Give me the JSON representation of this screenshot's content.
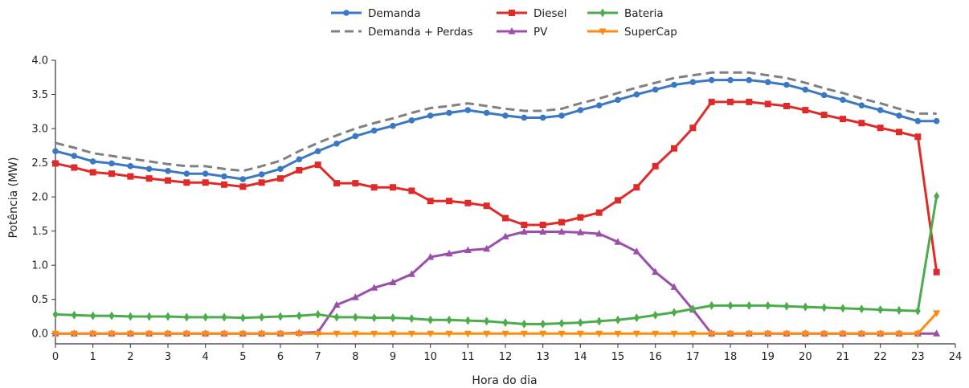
{
  "chart_data": {
    "type": "line",
    "title": "",
    "xlabel": "Hora do dia",
    "ylabel": "Potência (MW)",
    "xlim": [
      0,
      24
    ],
    "ylim": [
      -0.15,
      4.0
    ],
    "xticks": [
      0,
      1,
      2,
      3,
      4,
      5,
      6,
      7,
      8,
      9,
      10,
      11,
      12,
      13,
      14,
      15,
      16,
      17,
      18,
      19,
      20,
      21,
      22,
      23,
      24
    ],
    "yticks": [
      0.0,
      0.5,
      1.0,
      1.5,
      2.0,
      2.5,
      3.0,
      3.5,
      4.0
    ],
    "grid": false,
    "legend_position": "top-center",
    "x": [
      0,
      0.5,
      1,
      1.5,
      2,
      2.5,
      3,
      3.5,
      4,
      4.5,
      5,
      5.5,
      6,
      6.5,
      7,
      7.5,
      8,
      8.5,
      9,
      9.5,
      10,
      10.5,
      11,
      11.5,
      12,
      12.5,
      13,
      13.5,
      14,
      14.5,
      15,
      15.5,
      16,
      16.5,
      17,
      17.5,
      18,
      18.5,
      19,
      19.5,
      20,
      20.5,
      21,
      21.5,
      22,
      22.5,
      23,
      23.5
    ],
    "series": [
      {
        "name": "Demanda",
        "color": "#3b78c3",
        "marker": "circle",
        "dash": false,
        "values": [
          2.67,
          2.6,
          2.52,
          2.49,
          2.45,
          2.41,
          2.38,
          2.34,
          2.34,
          2.3,
          2.26,
          2.33,
          2.41,
          2.55,
          2.67,
          2.78,
          2.89,
          2.97,
          3.04,
          3.12,
          3.19,
          3.23,
          3.27,
          3.23,
          3.19,
          3.16,
          3.16,
          3.19,
          3.27,
          3.34,
          3.42,
          3.5,
          3.57,
          3.64,
          3.68,
          3.71,
          3.71,
          3.71,
          3.68,
          3.64,
          3.57,
          3.49,
          3.42,
          3.34,
          3.27,
          3.19,
          3.11,
          3.11
        ]
      },
      {
        "name": "Demanda + Perdas",
        "color": "#808080",
        "marker": "none",
        "dash": true,
        "values": [
          2.79,
          2.72,
          2.64,
          2.6,
          2.56,
          2.52,
          2.48,
          2.45,
          2.45,
          2.41,
          2.38,
          2.45,
          2.53,
          2.67,
          2.79,
          2.9,
          3.0,
          3.08,
          3.15,
          3.23,
          3.3,
          3.33,
          3.37,
          3.33,
          3.29,
          3.26,
          3.26,
          3.29,
          3.37,
          3.44,
          3.52,
          3.6,
          3.67,
          3.74,
          3.78,
          3.82,
          3.82,
          3.82,
          3.78,
          3.74,
          3.67,
          3.59,
          3.52,
          3.44,
          3.37,
          3.29,
          3.22,
          3.22
        ]
      },
      {
        "name": "Diesel",
        "color": "#e02a2a",
        "marker": "square",
        "dash": false,
        "values": [
          2.49,
          2.43,
          2.36,
          2.34,
          2.3,
          2.27,
          2.24,
          2.21,
          2.21,
          2.18,
          2.15,
          2.21,
          2.27,
          2.39,
          2.47,
          2.2,
          2.2,
          2.14,
          2.14,
          2.09,
          1.94,
          1.94,
          1.91,
          1.87,
          1.69,
          1.59,
          1.59,
          1.63,
          1.7,
          1.77,
          1.95,
          2.14,
          2.45,
          2.71,
          3.01,
          3.39,
          3.39,
          3.39,
          3.36,
          3.33,
          3.27,
          3.2,
          3.14,
          3.08,
          3.01,
          2.95,
          2.88,
          0.9
        ]
      },
      {
        "name": "PV",
        "color": "#9b4fab",
        "marker": "triangle-up",
        "dash": false,
        "values": [
          0,
          0,
          0,
          0,
          0,
          0,
          0,
          0,
          0,
          0,
          0,
          0,
          0,
          0.01,
          0.02,
          0.42,
          0.53,
          0.67,
          0.75,
          0.87,
          1.12,
          1.17,
          1.22,
          1.24,
          1.42,
          1.49,
          1.49,
          1.49,
          1.48,
          1.46,
          1.34,
          1.2,
          0.9,
          0.68,
          0.35,
          0,
          0,
          0,
          0,
          0,
          0,
          0,
          0,
          0,
          0,
          0,
          0,
          0
        ]
      },
      {
        "name": "Bateria",
        "color": "#4aac4a",
        "marker": "diamond",
        "dash": false,
        "values": [
          0.28,
          0.27,
          0.26,
          0.26,
          0.25,
          0.25,
          0.25,
          0.24,
          0.24,
          0.24,
          0.23,
          0.24,
          0.25,
          0.26,
          0.28,
          0.24,
          0.24,
          0.23,
          0.23,
          0.22,
          0.2,
          0.2,
          0.19,
          0.18,
          0.16,
          0.14,
          0.14,
          0.15,
          0.16,
          0.18,
          0.2,
          0.23,
          0.27,
          0.31,
          0.36,
          0.41,
          0.41,
          0.41,
          0.41,
          0.4,
          0.39,
          0.38,
          0.37,
          0.36,
          0.35,
          0.34,
          0.33,
          2.01
        ]
      },
      {
        "name": "SuperCap",
        "color": "#ff8a0f",
        "marker": "triangle-down",
        "dash": false,
        "values": [
          0,
          0,
          0,
          0,
          0,
          0,
          0,
          0,
          0,
          0,
          0,
          0,
          0,
          0,
          0,
          0,
          0,
          0,
          0,
          0,
          0,
          0,
          0,
          0,
          0,
          0,
          0,
          0,
          0,
          0,
          0,
          0,
          0,
          0,
          0,
          0,
          0,
          0,
          0,
          0,
          0,
          0,
          0,
          0,
          0,
          0,
          0,
          0.3
        ]
      }
    ]
  }
}
